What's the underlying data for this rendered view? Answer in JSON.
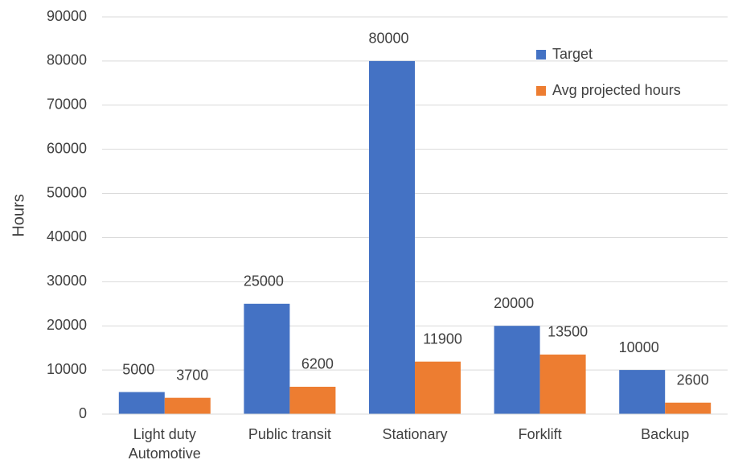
{
  "chart_data": {
    "type": "bar",
    "ylabel": "Hours",
    "categories": [
      "Light duty\nAutomotive",
      "Public transit",
      "Stationary",
      "Forklift",
      "Backup"
    ],
    "series": [
      {
        "name": "Target",
        "color": "#4472c4",
        "values": [
          5000,
          25000,
          80000,
          20000,
          10000
        ]
      },
      {
        "name": "Avg projected hours",
        "color": "#ed7d31",
        "values": [
          3700,
          6200,
          11900,
          13500,
          2600
        ]
      }
    ],
    "ylim": [
      0,
      90000
    ],
    "yticks": [
      0,
      10000,
      20000,
      30000,
      40000,
      50000,
      60000,
      70000,
      80000,
      90000
    ],
    "grid": true,
    "legend": "upper right",
    "data_labels": true
  }
}
